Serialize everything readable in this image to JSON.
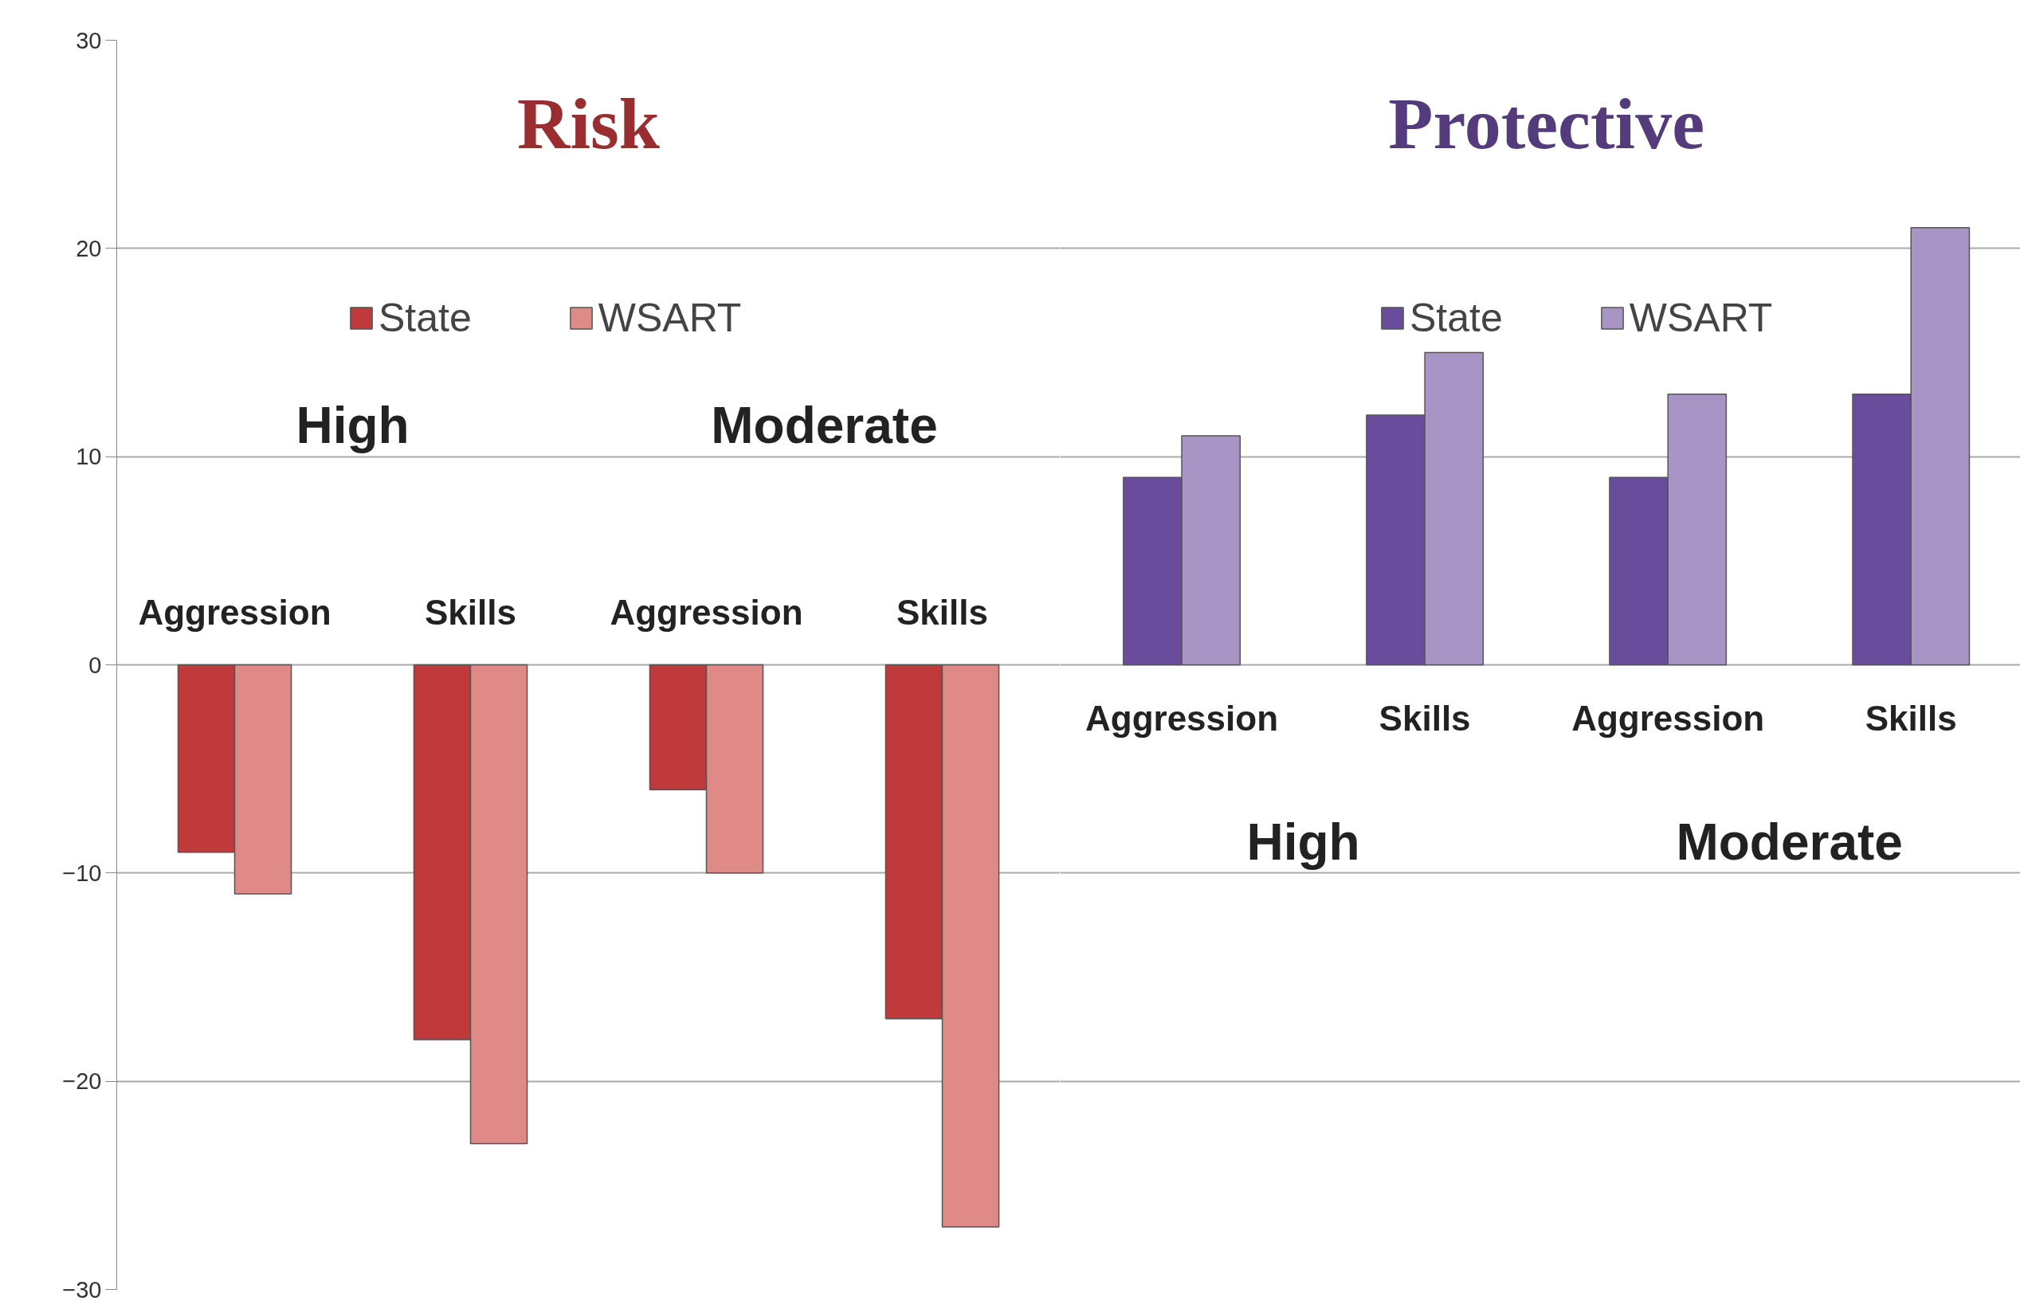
{
  "chart_data": [
    {
      "type": "bar",
      "title": "Risk",
      "categories": [
        "Aggression",
        "Skills",
        "Aggression",
        "Skills"
      ],
      "series": [
        {
          "name": "State",
          "color": "#c0393b",
          "values": [
            -9,
            -18,
            -6,
            -17
          ]
        },
        {
          "name": "WSART",
          "color": "#e08a88",
          "values": [
            -11,
            -23,
            -10,
            -27
          ]
        }
      ],
      "annotations": [
        "High",
        "Moderate"
      ],
      "ylim": [
        -30,
        30
      ],
      "yticks": [
        -30,
        -20,
        -10,
        0,
        10,
        20,
        30
      ],
      "grid": "y",
      "legend": "top"
    },
    {
      "type": "bar",
      "title": "Protective",
      "categories": [
        "Aggression",
        "Skills",
        "Aggression",
        "Skills"
      ],
      "series": [
        {
          "name": "State",
          "color": "#6a4c9c",
          "values": [
            9,
            12,
            9,
            13
          ]
        },
        {
          "name": "WSART",
          "color": "#a994c6",
          "values": [
            11,
            15,
            13,
            21
          ]
        }
      ],
      "annotations": [
        "High",
        "Moderate"
      ],
      "ylim": [
        -30,
        30
      ],
      "yticks": [
        -30,
        -20,
        -10,
        0,
        10,
        20,
        30
      ],
      "grid": "y",
      "legend": "top",
      "tick_labels": "x"
    }
  ]
}
